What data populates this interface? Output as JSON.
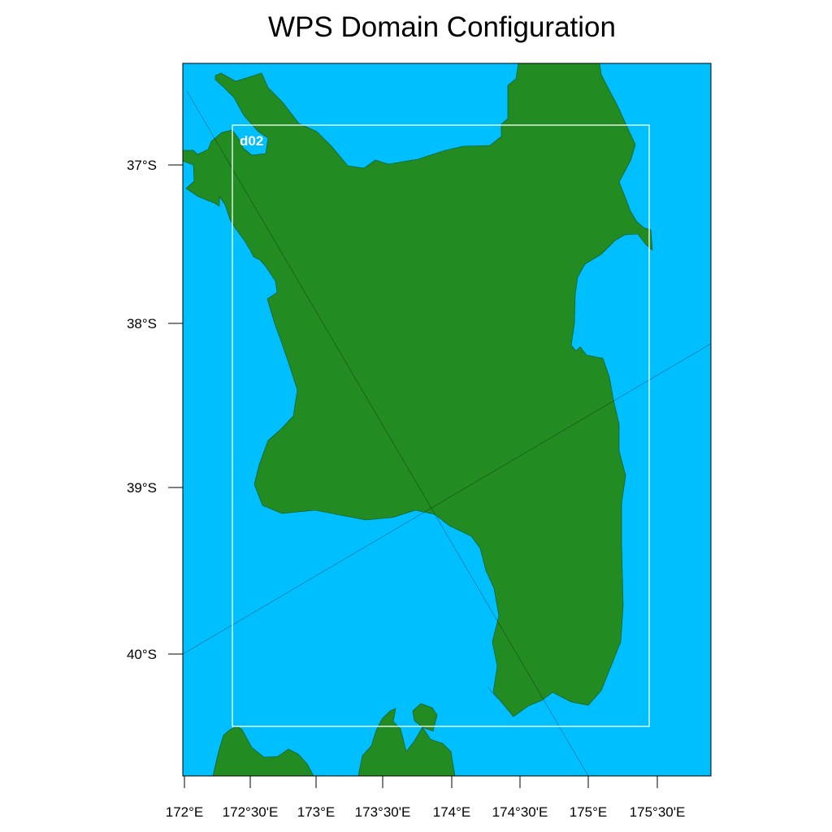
{
  "title": "WPS Domain Configuration",
  "map": {
    "ocean_color": "#00bfff",
    "land_color": "#228b22",
    "nest_box_color": "#ffffff",
    "nest_label": "d02"
  },
  "lat_ticks": [
    "37°S",
    "38°S",
    "39°S",
    "40°S"
  ],
  "lon_ticks": [
    "172°E",
    "172°30'E",
    "173°E",
    "173°30'E",
    "174°E",
    "174°30'E",
    "175°E",
    "175°30'E"
  ]
}
